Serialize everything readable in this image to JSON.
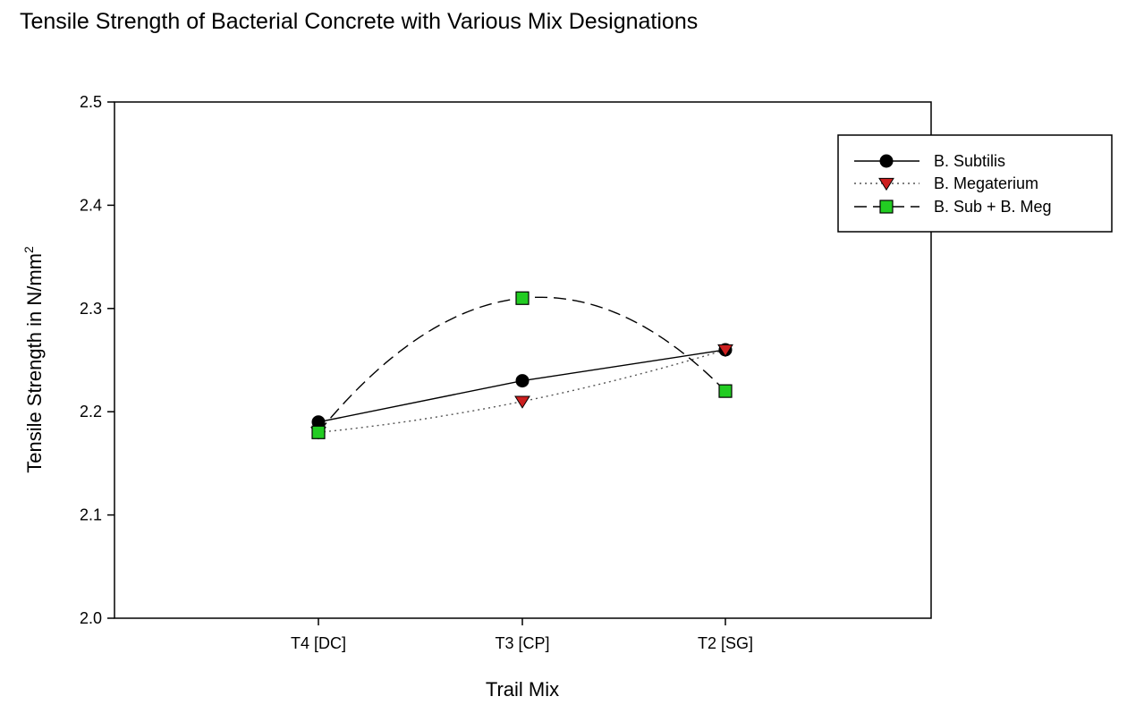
{
  "chart_data": {
    "type": "line",
    "title": "Tensile Strength of Bacterial Concrete with Various Mix Designations",
    "xlabel": "Trail Mix",
    "ylabel": "Tensile Strength in N/mm",
    "ylabel_superscript": "2",
    "categories": [
      "T4 [DC]",
      "T3 [CP]",
      "T2 [SG]"
    ],
    "ylim": [
      2.0,
      2.5
    ],
    "yticks": [
      "2.0",
      "2.1",
      "2.2",
      "2.3",
      "2.4",
      "2.5"
    ],
    "grid": false,
    "legend_position": "top-right",
    "series": [
      {
        "name": "B. Subtilis",
        "values": [
          2.19,
          2.23,
          2.26
        ],
        "line_style": "solid",
        "marker": "circle",
        "color": "#000000"
      },
      {
        "name": "B. Megaterium",
        "values": [
          2.18,
          2.21,
          2.26
        ],
        "line_style": "dotted",
        "marker": "triangle-down",
        "color": "#cc1f1f"
      },
      {
        "name": "B. Sub + B. Meg",
        "values": [
          2.18,
          2.31,
          2.22
        ],
        "line_style": "dashed",
        "marker": "square",
        "color": "#22cc22"
      }
    ]
  }
}
